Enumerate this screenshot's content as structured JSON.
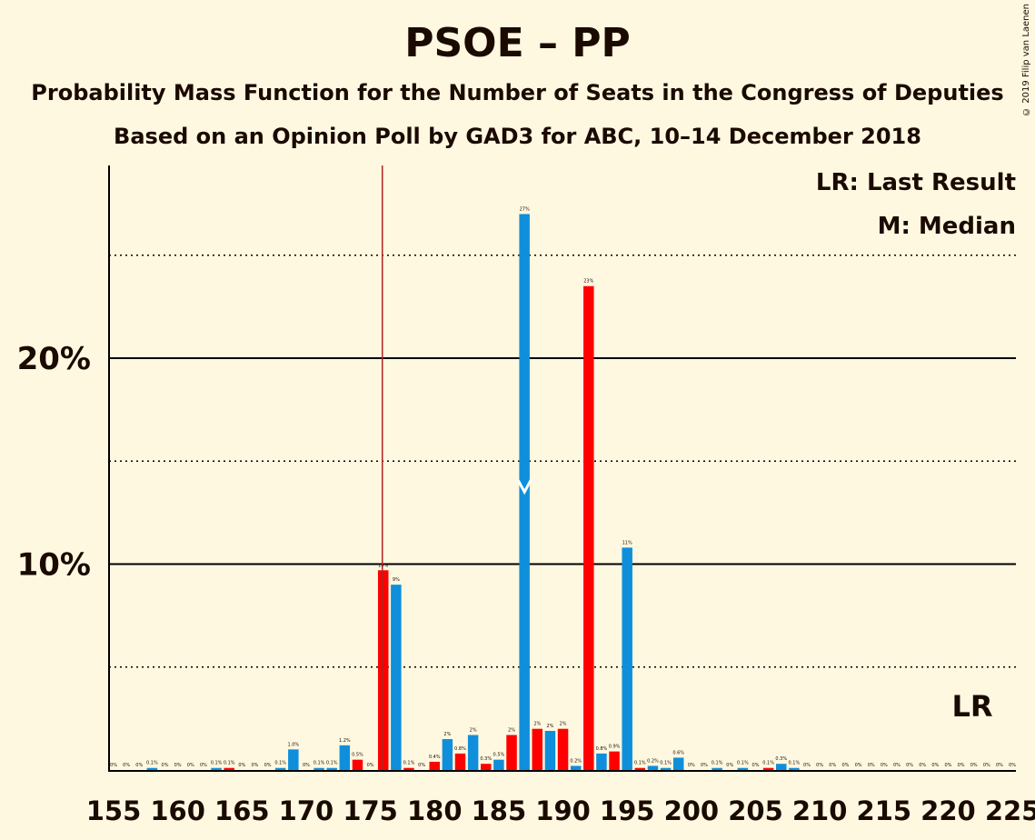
{
  "header": {
    "title": "PSOE – PP",
    "subtitle1": "Probability Mass Function for the Number of Seats in the Congress of Deputies",
    "subtitle2": "Based on an Opinion Poll by GAD3 for ABC, 10–14 December 2018",
    "copyright": "© 2019 Filip van Laenen"
  },
  "legend": {
    "lr": "LR: Last Result",
    "m": "M: Median",
    "lr_mark": "LR"
  },
  "colors": {
    "pmf": "#0F8FDB",
    "lr_bar": "#FF0000",
    "lr_line": "#B22222",
    "grid": "#000000",
    "background": "#FFF8E1"
  },
  "chart_data": {
    "type": "bar",
    "x": [
      155,
      156,
      157,
      158,
      159,
      160,
      161,
      162,
      163,
      164,
      165,
      166,
      167,
      168,
      169,
      170,
      171,
      172,
      173,
      174,
      175,
      176,
      177,
      178,
      179,
      180,
      181,
      182,
      183,
      184,
      185,
      186,
      187,
      188,
      189,
      190,
      191,
      192,
      193,
      194,
      195,
      196,
      197,
      198,
      199,
      200,
      201,
      202,
      203,
      204,
      205,
      206,
      207,
      208,
      209,
      210,
      211,
      212,
      213,
      214,
      215,
      216,
      217,
      218,
      219,
      220,
      221,
      222,
      223,
      224,
      225
    ],
    "values": [
      0,
      0,
      0,
      0.1,
      0,
      0,
      0,
      0,
      0.1,
      0.1,
      0,
      0,
      0,
      0.1,
      1.0,
      0,
      0.1,
      0.1,
      1.2,
      0.5,
      0,
      9.7,
      9.0,
      0.1,
      0,
      0.4,
      1.5,
      0.8,
      1.7,
      0.3,
      0.5,
      1.7,
      27.0,
      2.0,
      1.9,
      2.0,
      0.2,
      23.5,
      0.8,
      0.9,
      10.8,
      0.1,
      0.2,
      0.1,
      0.6,
      0,
      0,
      0.1,
      0,
      0.1,
      0,
      0.1,
      0.3,
      0.1,
      0,
      0,
      0,
      0,
      0,
      0,
      0,
      0,
      0,
      0,
      0,
      0,
      0,
      0,
      0,
      0,
      0
    ],
    "labels": [
      "0%",
      "0%",
      "0%",
      "0.1%",
      "0%",
      "0%",
      "0%",
      "0%",
      "0.1%",
      "0.1%",
      "0%",
      "0%",
      "0%",
      "0.1%",
      "1.0%",
      "0%",
      "0.1%",
      "0.1%",
      "1.2%",
      "0.5%",
      "0%",
      "10%",
      "9%",
      "0.1%",
      "0%",
      "0.4%",
      "2%",
      "0.8%",
      "2%",
      "0.3%",
      "0.5%",
      "2%",
      "27%",
      "2%",
      "2%",
      "2%",
      "0.2%",
      "23%",
      "0.8%",
      "0.9%",
      "11%",
      "0.1%",
      "0.2%",
      "0.1%",
      "0.6%",
      "0%",
      "0%",
      "0.1%",
      "0%",
      "0.1%",
      "0%",
      "0.1%",
      "0.3%",
      "0.1%",
      "0%",
      "0%",
      "0%",
      "0%",
      "0%",
      "0%",
      "0%",
      "0%",
      "0%",
      "0%",
      "0%",
      "0%",
      "0%",
      "0%",
      "0%",
      "0%",
      "0%"
    ],
    "red_bars": [
      164,
      174,
      176,
      178,
      180,
      182,
      184,
      186,
      188,
      190,
      192,
      194,
      196,
      206
    ],
    "last_result": 176,
    "median": 187,
    "median_marker_y": 13.5,
    "xticks": [
      155,
      160,
      165,
      170,
      175,
      180,
      185,
      190,
      195,
      200,
      205,
      210,
      215,
      220,
      225
    ],
    "yticks": [
      {
        "value": 10,
        "label": "10%"
      },
      {
        "value": 20,
        "label": "20%"
      }
    ],
    "dotted_lines": [
      5,
      15,
      25
    ],
    "ylim": [
      0,
      29.4
    ],
    "xlabel": "",
    "ylabel": ""
  }
}
